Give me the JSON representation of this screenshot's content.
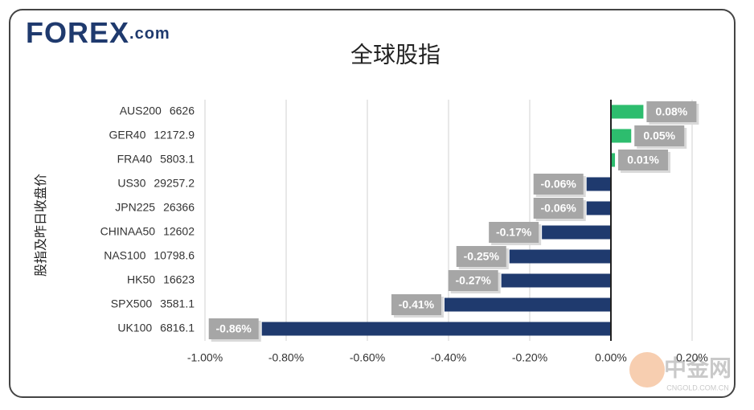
{
  "logo": {
    "name": "FOREX",
    "suffix": ".com"
  },
  "watermark": {
    "name": "中金网",
    "site": "CNGOLD.COM.CN"
  },
  "chart_data": {
    "type": "hbar",
    "title": "全球股指",
    "y_label": "股指及昨日收盘价",
    "categories": [
      "AUS200",
      "GER40",
      "FRA40",
      "US30",
      "JPN225",
      "CHINAA50",
      "NAS100",
      "HK50",
      "SPX500",
      "UK100"
    ],
    "close_prices": [
      6626,
      12172.9,
      5803.1,
      29257.2,
      26366,
      12602,
      10798.6,
      16623,
      3581.1,
      6816.1
    ],
    "values": [
      0.08,
      0.05,
      0.01,
      -0.06,
      -0.06,
      -0.17,
      -0.25,
      -0.27,
      -0.41,
      -0.86
    ],
    "value_labels": [
      "0.08%",
      "0.05%",
      "0.01%",
      "-0.06%",
      "-0.06%",
      "-0.17%",
      "-0.25%",
      "-0.27%",
      "-0.41%",
      "-0.86%"
    ],
    "positive_color": "#2dbd6e",
    "negative_color": "#1f3a6e",
    "xlim": [
      -1.0,
      0.2
    ],
    "xticks": [
      {
        "value": -1.0,
        "label": "-1.00%"
      },
      {
        "value": -0.8,
        "label": "-0.80%"
      },
      {
        "value": -0.6,
        "label": "-0.60%"
      },
      {
        "value": -0.4,
        "label": "-0.40%"
      },
      {
        "value": -0.2,
        "label": "-0.20%"
      },
      {
        "value": 0,
        "label": "0.00%"
      },
      {
        "value": 0.2,
        "label": "0.20%"
      }
    ],
    "grid": true
  }
}
